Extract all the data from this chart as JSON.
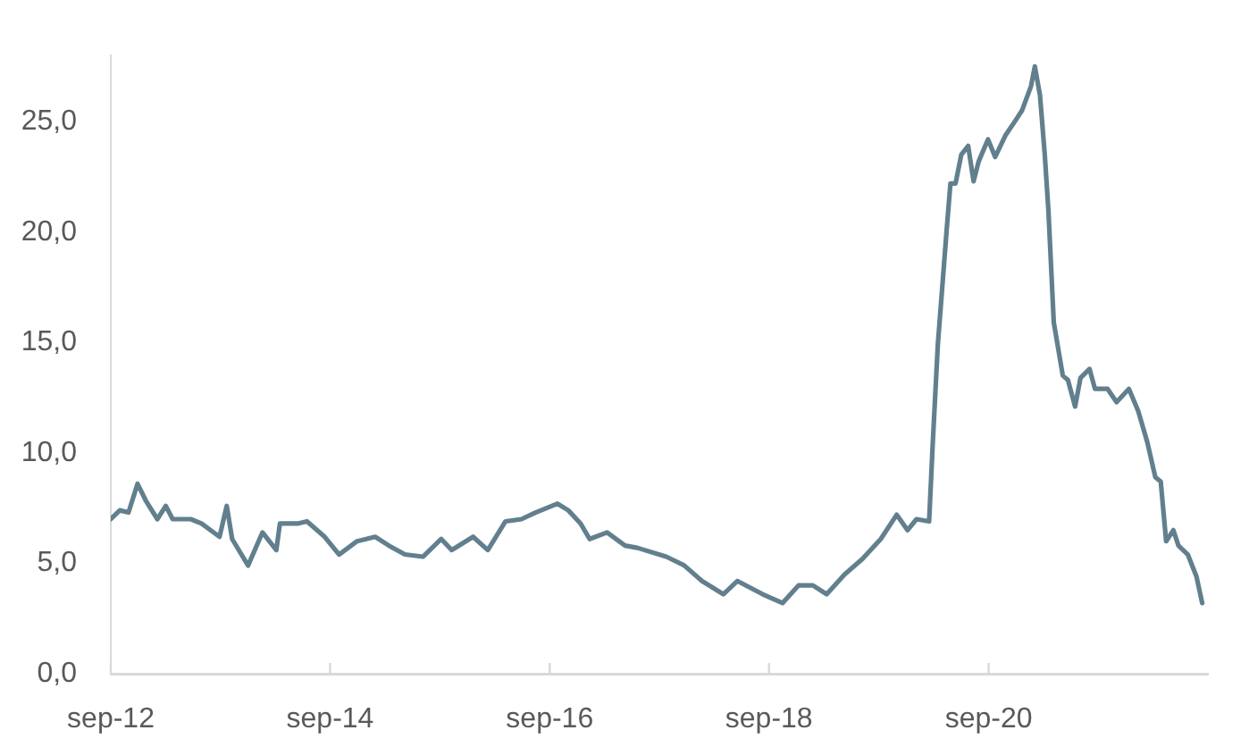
{
  "chart_data": {
    "type": "line",
    "x": [
      "2012-09-01",
      "2012-10-01",
      "2012-10-30",
      "2012-11-29",
      "2012-12-28",
      "2013-02-03",
      "2013-03-03",
      "2013-03-26",
      "2013-05-25",
      "2013-06-30",
      "2013-08-29",
      "2013-09-22",
      "2013-10-10",
      "2013-12-02",
      "2014-01-19",
      "2014-03-06",
      "2014-03-18",
      "2014-05-16",
      "2014-06-16",
      "2014-08-14",
      "2014-10-01",
      "2014-11-30",
      "2015-01-29",
      "2015-03-16",
      "2015-05-08",
      "2015-07-07",
      "2015-09-06",
      "2015-10-11",
      "2015-12-21",
      "2016-02-08",
      "2016-04-07",
      "2016-05-30",
      "2016-07-16",
      "2016-09-27",
      "2016-11-02",
      "2016-12-13",
      "2017-01-12",
      "2017-03-11",
      "2017-05-10",
      "2017-06-20",
      "2017-09-24",
      "2017-11-23",
      "2018-01-21",
      "2018-04-02",
      "2018-05-19",
      "2018-08-11",
      "2018-10-16",
      "2018-12-08",
      "2019-01-25",
      "2019-03-12",
      "2019-05-11",
      "2019-07-09",
      "2019-09-08",
      "2019-10-31",
      "2019-12-06",
      "2020-01-05",
      "2020-02-16",
      "2020-02-28",
      "2020-03-16",
      "2020-04-15",
      "2020-04-27",
      "2020-05-14",
      "2020-06-02",
      "2020-06-25",
      "2020-07-13",
      "2020-07-30",
      "2020-08-30",
      "2020-09-23",
      "2020-10-28",
      "2020-11-27",
      "2020-12-21",
      "2021-01-20",
      "2021-02-02",
      "2021-02-19",
      "2021-03-07",
      "2021-03-19",
      "2021-04-06",
      "2021-05-06",
      "2021-05-23",
      "2021-06-16",
      "2021-07-04",
      "2021-08-03",
      "2021-08-21",
      "2021-10-02",
      "2021-11-01",
      "2021-12-12",
      "2022-01-12",
      "2022-02-11",
      "2022-03-10",
      "2022-03-28",
      "2022-04-15",
      "2022-05-09",
      "2022-05-26",
      "2022-06-26",
      "2022-07-25",
      "2022-08-13"
    ],
    "series": [
      {
        "color": "#627f8e",
        "values": [
          7.0,
          7.4,
          7.3,
          8.6,
          7.8,
          7.0,
          7.6,
          7.0,
          7.0,
          6.8,
          6.2,
          7.6,
          6.1,
          4.9,
          6.4,
          5.6,
          6.8,
          6.8,
          6.9,
          6.2,
          5.4,
          6.0,
          6.2,
          5.8,
          5.4,
          5.3,
          6.1,
          5.6,
          6.2,
          5.6,
          6.9,
          7.0,
          7.3,
          7.7,
          7.4,
          6.8,
          6.1,
          6.4,
          5.8,
          5.7,
          5.3,
          4.9,
          4.2,
          3.6,
          4.2,
          3.6,
          3.2,
          4.0,
          4.0,
          3.6,
          4.5,
          5.2,
          6.1,
          7.2,
          6.5,
          7.0,
          6.9,
          10.4,
          14.9,
          20.2,
          22.2,
          22.2,
          23.5,
          23.9,
          22.3,
          23.2,
          24.2,
          23.4,
          24.4,
          25.0,
          25.5,
          26.6,
          27.5,
          26.2,
          23.5,
          21.0,
          15.9,
          13.5,
          13.3,
          12.1,
          13.4,
          13.8,
          12.9,
          12.9,
          12.3,
          12.9,
          11.9,
          10.5,
          8.9,
          8.7,
          6.0,
          6.5,
          5.8,
          5.4,
          4.4,
          3.2
        ]
      }
    ],
    "xlim": [
      "2012-09-01",
      "2022-09-01"
    ],
    "xticks": [
      {
        "value": "2012-09-01",
        "label": "sep-12"
      },
      {
        "value": "2014-09-01",
        "label": "sep-14"
      },
      {
        "value": "2016-09-01",
        "label": "sep-16"
      },
      {
        "value": "2018-09-01",
        "label": "sep-18"
      },
      {
        "value": "2020-09-01",
        "label": "sep-20"
      }
    ],
    "ylim": [
      0,
      28
    ],
    "yticks": [
      {
        "value": 0,
        "label": "0,0"
      },
      {
        "value": 5,
        "label": "5,0"
      },
      {
        "value": 10,
        "label": "10,0"
      },
      {
        "value": 15,
        "label": "15,0"
      },
      {
        "value": 20,
        "label": "20,0"
      },
      {
        "value": 25,
        "label": "25,0"
      }
    ]
  }
}
